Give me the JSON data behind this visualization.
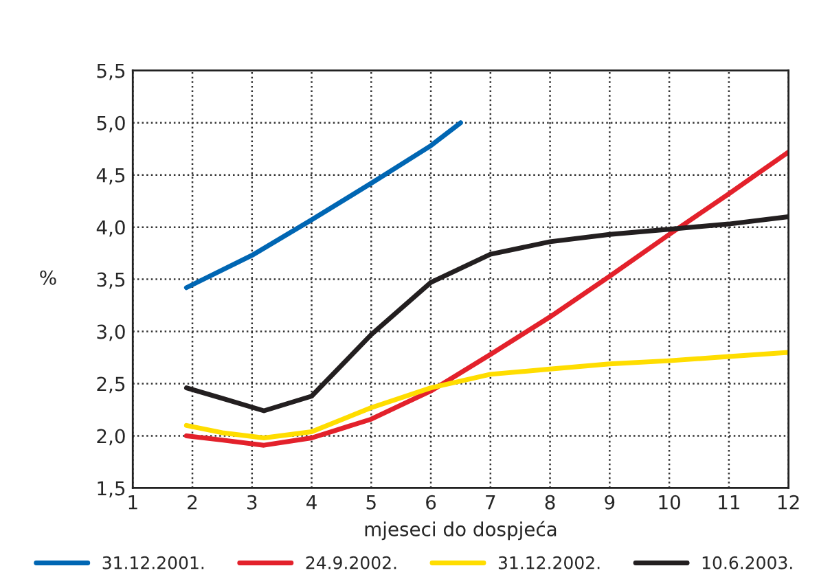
{
  "chart_data": {
    "type": "line",
    "xlabel": "mjeseci do dospjeća",
    "ylabel": "%",
    "xlim": [
      1,
      12
    ],
    "xticks": [
      1,
      2,
      3,
      4,
      5,
      6,
      7,
      8,
      9,
      10,
      11,
      12
    ],
    "ylim": [
      1.5,
      5.5
    ],
    "yticks": [
      {
        "value": 1.5,
        "label": "1,5"
      },
      {
        "value": 2.0,
        "label": "2,0"
      },
      {
        "value": 2.5,
        "label": "2,5"
      },
      {
        "value": 3.0,
        "label": "3,0"
      },
      {
        "value": 3.5,
        "label": "3,5"
      },
      {
        "value": 4.0,
        "label": "4,0"
      },
      {
        "value": 4.5,
        "label": "4,5"
      },
      {
        "value": 5.0,
        "label": "5,0"
      },
      {
        "value": 5.5,
        "label": "5,5"
      }
    ],
    "grid": true,
    "legend": "bottom",
    "line_style": "solid",
    "series": [
      {
        "name": "31.12.2001.",
        "color": "#0066b3",
        "x": [
          1.9,
          3,
          4,
          5,
          6,
          6.5
        ],
        "values": [
          3.42,
          3.73,
          4.07,
          4.42,
          4.78,
          5.0
        ]
      },
      {
        "name": "24.9.2002.",
        "color": "#e3212b",
        "x": [
          1.9,
          2.5,
          3.2,
          4,
          5,
          6,
          7,
          8,
          9,
          10,
          11,
          12
        ],
        "values": [
          2.0,
          1.96,
          1.91,
          1.98,
          2.16,
          2.43,
          2.78,
          3.14,
          3.53,
          3.93,
          4.32,
          4.72
        ]
      },
      {
        "name": "31.12.2002.",
        "color": "#ffdd00",
        "x": [
          1.9,
          2.5,
          3.2,
          4,
          5,
          6,
          7,
          8,
          9,
          10,
          11,
          12
        ],
        "values": [
          2.1,
          2.03,
          1.98,
          2.04,
          2.27,
          2.46,
          2.59,
          2.64,
          2.69,
          2.72,
          2.76,
          2.8
        ]
      },
      {
        "name": "10.6.2003.",
        "color": "#231f20",
        "x": [
          1.9,
          2.5,
          3.2,
          4,
          5,
          6,
          7,
          8,
          9,
          10,
          11,
          12
        ],
        "values": [
          2.46,
          2.36,
          2.24,
          2.38,
          2.97,
          3.47,
          3.74,
          3.86,
          3.93,
          3.98,
          4.03,
          4.1
        ]
      }
    ]
  }
}
